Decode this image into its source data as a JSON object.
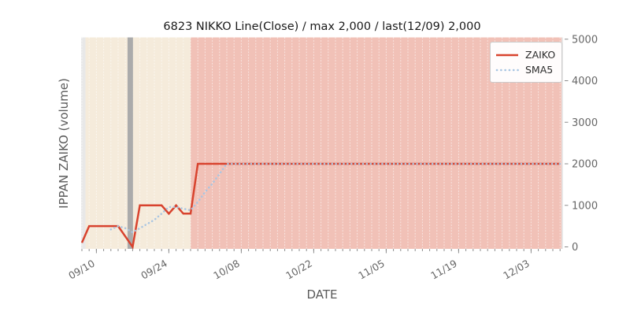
{
  "chart_data": {
    "type": "line",
    "title": "6823 NIKKO Line(Close) / max 2,000 / last(12/09) 2,000",
    "xlabel": "DATE",
    "ylabel": "IPPAN ZAIKO (volume)",
    "ylim": [
      0,
      5000
    ],
    "y_ticks": [
      0,
      1000,
      2000,
      3000,
      4000,
      5000
    ],
    "x_tick_labels": [
      "09/10",
      "09/24",
      "10/08",
      "10/22",
      "11/05",
      "11/19",
      "12/03"
    ],
    "x_tick_indices": [
      2,
      12,
      22,
      32,
      42,
      52,
      62
    ],
    "n_points": 67,
    "last_date": "12/09",
    "last_value": 2000,
    "max_value": 2000,
    "grid": "vertical white dashed line per trading day",
    "legend_position": "upper right",
    "series": [
      {
        "name": "ZAIKO",
        "color": "#d8432e",
        "style": "solid",
        "values": [
          100,
          500,
          500,
          500,
          500,
          500,
          250,
          0,
          1000,
          1000,
          1000,
          1000,
          800,
          1000,
          800,
          800,
          2000,
          2000,
          2000,
          2000,
          2000,
          2000,
          2000,
          2000,
          2000,
          2000,
          2000,
          2000,
          2000,
          2000,
          2000,
          2000,
          2000,
          2000,
          2000,
          2000,
          2000,
          2000,
          2000,
          2000,
          2000,
          2000,
          2000,
          2000,
          2000,
          2000,
          2000,
          2000,
          2000,
          2000,
          2000,
          2000,
          2000,
          2000,
          2000,
          2000,
          2000,
          2000,
          2000,
          2000,
          2000,
          2000,
          2000,
          2000,
          2000,
          2000,
          2000
        ]
      },
      {
        "name": "SMA5",
        "color": "#a8c5e2",
        "style": "dotted",
        "values": [
          null,
          null,
          null,
          null,
          420,
          500,
          450,
          350,
          450,
          550,
          650,
          800,
          960,
          960,
          920,
          880,
          1080,
          1320,
          1520,
          1760,
          2000,
          2000,
          2000,
          2000,
          2000,
          2000,
          2000,
          2000,
          2000,
          2000,
          2000,
          2000,
          2000,
          2000,
          2000,
          2000,
          2000,
          2000,
          2000,
          2000,
          2000,
          2000,
          2000,
          2000,
          2000,
          2000,
          2000,
          2000,
          2000,
          2000,
          2000,
          2000,
          2000,
          2000,
          2000,
          2000,
          2000,
          2000,
          2000,
          2000,
          2000,
          2000,
          2000,
          2000,
          2000,
          2000,
          2000
        ]
      }
    ],
    "background_regions": [
      {
        "name": "pre-period",
        "color": "#f5ebdb",
        "from_index": 0.5,
        "to_index": 15
      },
      {
        "name": "post-period",
        "color": "#f1c1b7",
        "from_index": 15,
        "to_index": 66.2
      },
      {
        "name": "event-band",
        "color": "#ababab",
        "from_index": 6.3,
        "to_index": 7.05
      }
    ],
    "plot_margin_color": "#e8e8e8",
    "tick_color": "#8c8c8c",
    "tick_label_color": "#666666"
  },
  "legend": {
    "items": [
      {
        "label": "ZAIKO"
      },
      {
        "label": "SMA5"
      }
    ]
  }
}
